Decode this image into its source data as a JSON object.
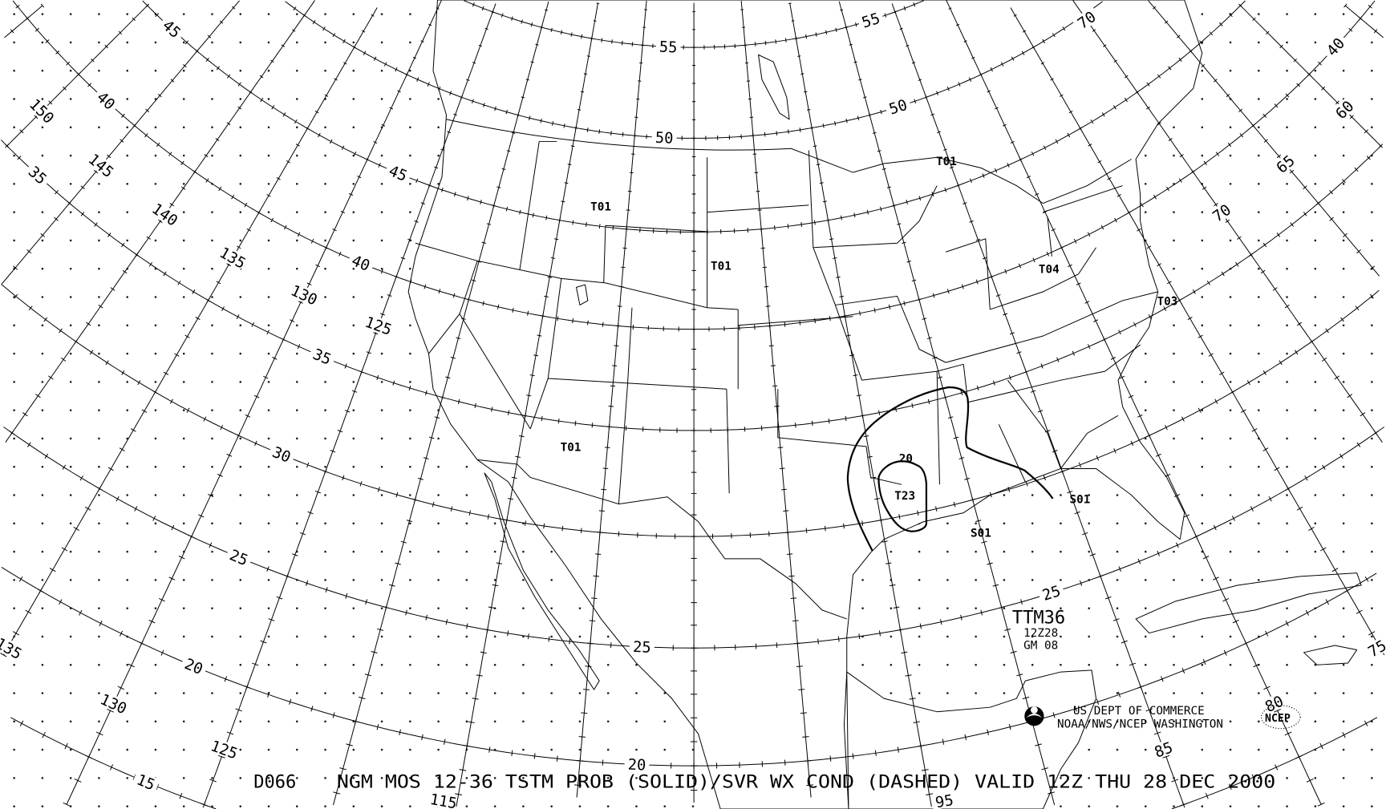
{
  "map": {
    "product_code": "D066",
    "title": "NGM MOS 12-36 TSTM PROB (SOLID)/SVR WX COND (DASHED) VALID 12Z THU 28 DEC 2000",
    "chart_id": "TTM36",
    "run_time": "12Z28",
    "run_info": "GM 08",
    "agency_line1": "US DEPT OF COMMERCE",
    "agency_line2": "NOAA/NWS/NCEP WASHINGTON",
    "ncep_logo_text": "NCEP",
    "noaa_logo": "noaa-logo-icon",
    "projection": "polar stereographic",
    "graticule_step_deg": 5,
    "colors": {
      "ink": "#000000",
      "background": "#ffffff"
    }
  },
  "graticule_labels": [
    {
      "text": "55",
      "lat": 55,
      "lon": -107.5
    },
    {
      "text": "50",
      "lat": 50,
      "lon": -107.5
    },
    {
      "text": "25",
      "lat": 25,
      "lon": -107.5
    },
    {
      "text": "20",
      "lat": 20,
      "lon": -107.5
    },
    {
      "text": "55",
      "lat": 55,
      "lon": -87.5
    },
    {
      "text": "50",
      "lat": 50,
      "lon": -87.5
    },
    {
      "text": "25",
      "lat": 25,
      "lon": -87.5
    },
    {
      "text": "45",
      "lat": 45,
      "lon": -127.5
    },
    {
      "text": "40",
      "lat": 40,
      "lon": -127.5
    },
    {
      "text": "35",
      "lat": 35,
      "lon": -127.5
    },
    {
      "text": "30",
      "lat": 30,
      "lon": -127.5
    },
    {
      "text": "25",
      "lat": 25,
      "lon": -127.5
    },
    {
      "text": "20",
      "lat": 20,
      "lon": -127.5
    },
    {
      "text": "15",
      "lat": 15,
      "lon": -127.5
    },
    {
      "text": "45",
      "lat": 45,
      "lon": -147.5
    },
    {
      "text": "40",
      "lat": 40,
      "lon": -147.5
    },
    {
      "text": "35",
      "lat": 35,
      "lon": -147.5
    },
    {
      "text": "40",
      "lat": 40,
      "lon": -57.5
    },
    {
      "text": "70",
      "lat": 49.7,
      "lon": -70
    },
    {
      "text": "150",
      "lat": 37.4,
      "lon": -150
    },
    {
      "text": "145",
      "lat": 37.4,
      "lon": -145
    },
    {
      "text": "140",
      "lat": 37.4,
      "lon": -140
    },
    {
      "text": "135",
      "lat": 37.4,
      "lon": -135
    },
    {
      "text": "130",
      "lat": 37.4,
      "lon": -130
    },
    {
      "text": "125",
      "lat": 37.4,
      "lon": -125
    },
    {
      "text": "70",
      "lat": 37.5,
      "lon": -70
    },
    {
      "text": "65",
      "lat": 37.5,
      "lon": -65
    },
    {
      "text": "60",
      "lat": 37.5,
      "lon": -60
    },
    {
      "text": "135",
      "lat": 17.3,
      "lon": -135
    },
    {
      "text": "130",
      "lat": 17.3,
      "lon": -130
    },
    {
      "text": "125",
      "lat": 17.3,
      "lon": -125
    },
    {
      "text": "85",
      "lat": 17.3,
      "lon": -85
    },
    {
      "text": "80",
      "lat": 17.3,
      "lon": -80
    },
    {
      "text": "75",
      "lat": 17.3,
      "lon": -75
    },
    {
      "text": "115",
      "lat": 14.6,
      "lon": -115
    },
    {
      "text": "95",
      "lat": 14.6,
      "lon": -95
    }
  ],
  "field_labels": [
    {
      "text": "T01",
      "region": "Montana"
    },
    {
      "text": "T01",
      "region": "South Dakota"
    },
    {
      "text": "T01",
      "region": "Arizona"
    },
    {
      "text": "T01",
      "region": "Lake Superior"
    },
    {
      "text": "T04",
      "region": "Ohio Valley"
    },
    {
      "text": "T03",
      "region": "Virginia coast"
    },
    {
      "text": "T23",
      "region": "Louisiana"
    },
    {
      "text": "20",
      "region": "Louisiana contour"
    },
    {
      "text": "S01",
      "region": "Gulf of Mexico"
    },
    {
      "text": "S01",
      "region": "Florida panhandle"
    }
  ],
  "contours": [
    {
      "type": "tstm_prob_solid",
      "value": 2
    },
    {
      "type": "tstm_prob_solid",
      "value": 20
    }
  ]
}
